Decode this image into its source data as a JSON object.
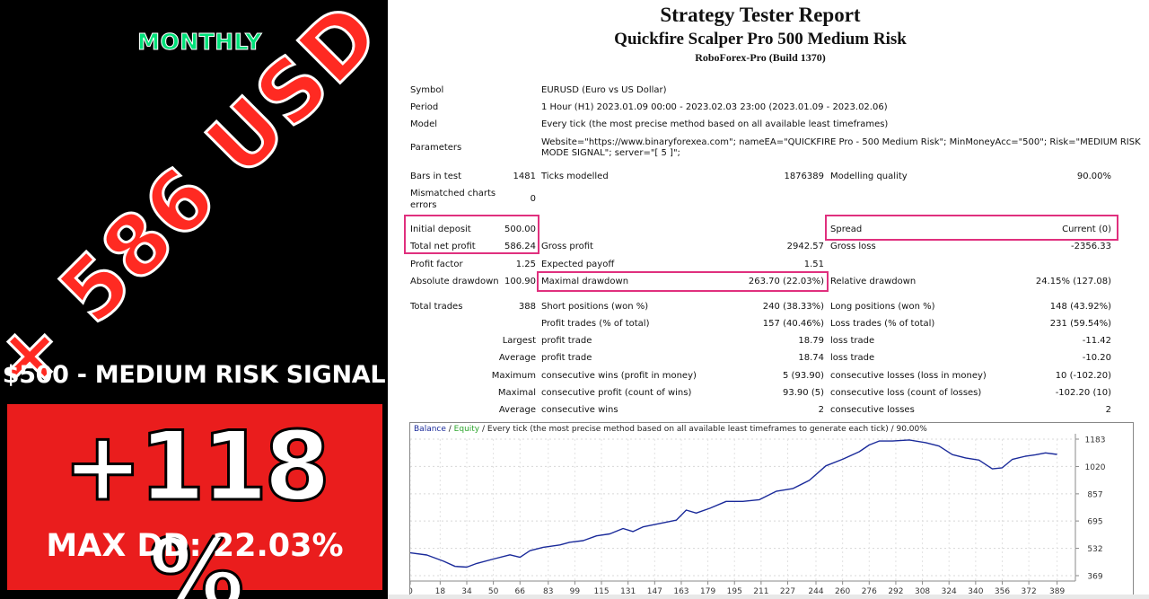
{
  "promo": {
    "period_label": "MONTHLY",
    "profit_banner": "+ 586 USD",
    "signal_label": "$500 - MEDIUM RISK SIGNAL",
    "gain_percent": "+118 %",
    "max_dd": "MAX DD: 22.03%",
    "colors": {
      "monthly": "#00e27a",
      "banner": "#ff2a22",
      "box": "#ea1d1d"
    }
  },
  "report": {
    "title": "Strategy Tester Report",
    "subtitle": "Quickfire Scalper Pro 500 Medium Risk",
    "build": "RoboForex-Pro (Build 1370)",
    "symbol_label": "Symbol",
    "symbol_value": "EURUSD (Euro vs US Dollar)",
    "period_label": "Period",
    "period_value": "1 Hour (H1) 2023.01.09 00:00 - 2023.02.03 23:00 (2023.01.09 - 2023.02.06)",
    "model_label": "Model",
    "model_value": "Every tick (the most precise method based on all available least timeframes)",
    "parameters_label": "Parameters",
    "parameters_line1": "Website=\"https://www.binaryforexea.com\"; nameEA=\"QUICKFIRE Pro - 500 Medium Risk\"; MinMoneyAcc=\"500\"; Risk=\"MEDIUM RISK",
    "parameters_line2": "MODE SIGNAL\"; server=\"[ 5 ]\";",
    "bars_label": "Bars in test",
    "bars_value": "1481",
    "ticks_label": "Ticks modelled",
    "ticks_value": "1876389",
    "quality_label": "Modelling quality",
    "quality_value": "90.00%",
    "mismatch_label1": "Mismatched charts",
    "mismatch_label2": "errors",
    "mismatch_value": "0",
    "initial_label": "Initial deposit",
    "initial_value": "500.00",
    "spread_label": "Spread",
    "spread_value": "Current (0)",
    "netprofit_label": "Total net profit",
    "netprofit_value": "586.24",
    "grossprofit_label": "Gross profit",
    "grossprofit_value": "2942.57",
    "grossloss_label": "Gross loss",
    "grossloss_value": "-2356.33",
    "pf_label": "Profit factor",
    "pf_value": "1.25",
    "payoff_label": "Expected payoff",
    "payoff_value": "1.51",
    "absdd_label": "Absolute drawdown",
    "absdd_value": "100.90",
    "maxdd_label": "Maximal drawdown",
    "maxdd_value": "263.70 (22.03%)",
    "reldd_label": "Relative drawdown",
    "reldd_value": "24.15% (127.08)",
    "trades_label": "Total trades",
    "trades_value": "388",
    "short_label": "Short positions (won %)",
    "short_value": "240 (38.33%)",
    "long_label": "Long positions (won %)",
    "long_value": "148 (43.92%)",
    "ptrades_label": "Profit trades (% of total)",
    "ptrades_value": "157 (40.46%)",
    "ltrades_label": "Loss trades (% of total)",
    "ltrades_value": "231 (59.54%)",
    "largest": "Largest",
    "average": "Average",
    "maximum": "Maximum",
    "maximal": "Maximal",
    "profit_trade": "profit trade",
    "loss_trade": "loss trade",
    "largest_profit": "18.79",
    "largest_loss": "-11.42",
    "average_profit": "18.74",
    "average_loss": "-10.20",
    "cons_wins_money_label": "consecutive wins (profit in money)",
    "cons_wins_money_value": "5 (93.90)",
    "cons_losses_money_label": "consecutive losses (loss in money)",
    "cons_losses_money_value": "10 (-102.20)",
    "cons_profit_count_label": "consecutive profit (count of wins)",
    "cons_profit_count_value": "93.90 (5)",
    "cons_loss_count_label": "consecutive loss (count of losses)",
    "cons_loss_count_value": "-102.20 (10)",
    "avg_cons_wins_label": "consecutive wins",
    "avg_cons_wins_value": "2",
    "avg_cons_losses_label": "consecutive losses",
    "avg_cons_losses_value": "2",
    "legend_balance": "Balance",
    "legend_sep1": " / ",
    "legend_equity": "Equity",
    "legend_rest": " / Every tick (the most precise method based on all available least timeframes to generate each tick) / 90.00%"
  },
  "chart_data": {
    "type": "line",
    "series": [
      {
        "name": "Balance",
        "x": [
          0,
          10,
          20,
          27,
          34,
          40,
          50,
          60,
          66,
          72,
          80,
          90,
          96,
          104,
          112,
          120,
          128,
          134,
          140,
          150,
          160,
          166,
          172,
          180,
          190,
          200,
          210,
          220,
          230,
          240,
          250,
          260,
          270,
          276,
          282,
          290,
          300,
          310,
          318,
          326,
          334,
          342,
          350,
          356,
          362,
          370,
          376,
          382,
          389
        ],
        "values": [
          505,
          492,
          455,
          424,
          420,
          442,
          468,
          493,
          478,
          518,
          538,
          552,
          568,
          578,
          606,
          618,
          650,
          632,
          660,
          680,
          700,
          760,
          742,
          770,
          812,
          812,
          822,
          872,
          888,
          937,
          1024,
          1063,
          1108,
          1148,
          1172,
          1172,
          1178,
          1162,
          1142,
          1091,
          1071,
          1058,
          1006,
          1012,
          1062,
          1081,
          1090,
          1101,
          1092
        ],
        "color": "#1a2a9a"
      }
    ],
    "x_ticks": [
      "0",
      "18",
      "34",
      "50",
      "66",
      "83",
      "99",
      "115",
      "131",
      "147",
      "163",
      "179",
      "195",
      "211",
      "227",
      "244",
      "260",
      "276",
      "292",
      "308",
      "324",
      "340",
      "356",
      "372",
      "389"
    ],
    "y_ticks": [
      "1183",
      "1020",
      "857",
      "695",
      "532",
      "369"
    ],
    "xlim": [
      0,
      400
    ],
    "ylim": [
      369,
      1183
    ],
    "grid": true,
    "legend": "top-left"
  }
}
